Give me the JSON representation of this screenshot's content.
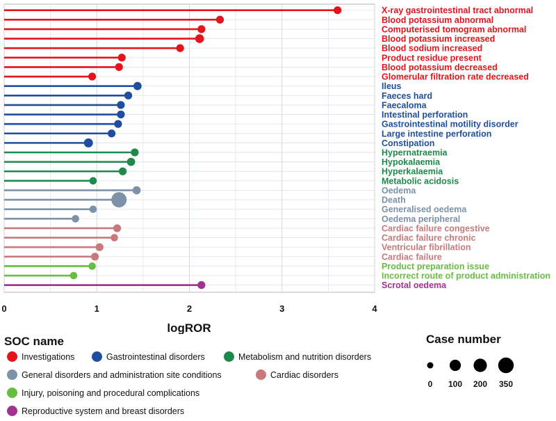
{
  "chart_data": {
    "type": "lollipop",
    "xlabel": "logROR",
    "xlim": [
      0,
      4
    ],
    "xticks": [
      "0",
      "1",
      "2",
      "3",
      "4"
    ],
    "grid": true,
    "size_legend_title": "Case number",
    "size_legend_values": [
      "0",
      "100",
      "200",
      "350"
    ],
    "soc_legend_title": "SOC name",
    "groups": [
      {
        "name": "Investigations",
        "color": "#e3141b"
      },
      {
        "name": "Gastrointestinal disorders",
        "color": "#1f4e9f"
      },
      {
        "name": "Metabolism and nutrition disorders",
        "color": "#1d8a4b"
      },
      {
        "name": "General disorders and administration site conditions",
        "color": "#7b92a8"
      },
      {
        "name": "Cardiac disorders",
        "color": "#c8797b"
      },
      {
        "name": "Injury, poisoning and procedural complications",
        "color": "#66bd3f"
      },
      {
        "name": "Reproductive system and breast disorders",
        "color": "#a0338f"
      }
    ],
    "points": [
      {
        "label": "X-ray gastrointestinal tract abnormal",
        "value": 3.6,
        "group": 0,
        "cases": 10
      },
      {
        "label": "Blood potassium abnormal",
        "value": 2.33,
        "group": 0,
        "cases": 10
      },
      {
        "label": "Computerised tomogram abnormal",
        "value": 2.13,
        "group": 0,
        "cases": 10
      },
      {
        "label": "Blood potassium increased",
        "value": 2.11,
        "group": 0,
        "cases": 25
      },
      {
        "label": "Blood sodium increased",
        "value": 1.9,
        "group": 0,
        "cases": 10
      },
      {
        "label": "Product residue present",
        "value": 1.27,
        "group": 0,
        "cases": 10
      },
      {
        "label": "Blood potassium decreased",
        "value": 1.24,
        "group": 0,
        "cases": 10
      },
      {
        "label": "Glomerular filtration rate decreased",
        "value": 0.95,
        "group": 0,
        "cases": 10
      },
      {
        "label": "Ileus",
        "value": 1.44,
        "group": 1,
        "cases": 15
      },
      {
        "label": "Faeces hard",
        "value": 1.34,
        "group": 1,
        "cases": 10
      },
      {
        "label": "Faecaloma",
        "value": 1.26,
        "group": 1,
        "cases": 10
      },
      {
        "label": "Intestinal perforation",
        "value": 1.26,
        "group": 1,
        "cases": 10
      },
      {
        "label": "Gastrointestinal motility disorder",
        "value": 1.23,
        "group": 1,
        "cases": 10
      },
      {
        "label": "Large intestine perforation",
        "value": 1.16,
        "group": 1,
        "cases": 10
      },
      {
        "label": "Constipation",
        "value": 0.91,
        "group": 1,
        "cases": 30
      },
      {
        "label": "Hypernatraemia",
        "value": 1.41,
        "group": 2,
        "cases": 10
      },
      {
        "label": "Hypokalaemia",
        "value": 1.37,
        "group": 2,
        "cases": 15
      },
      {
        "label": "Hyperkalaemia",
        "value": 1.28,
        "group": 2,
        "cases": 10
      },
      {
        "label": "Metabolic acidosis",
        "value": 0.96,
        "group": 2,
        "cases": 5
      },
      {
        "label": "Oedema",
        "value": 1.43,
        "group": 3,
        "cases": 15
      },
      {
        "label": "Death",
        "value": 1.24,
        "group": 3,
        "cases": 330
      },
      {
        "label": "Generalised oedema",
        "value": 0.96,
        "group": 3,
        "cases": 5
      },
      {
        "label": "Oedema peripheral",
        "value": 0.77,
        "group": 3,
        "cases": 5
      },
      {
        "label": "Cardiac failure congestive",
        "value": 1.22,
        "group": 4,
        "cases": 10
      },
      {
        "label": "Cardiac failure chronic",
        "value": 1.19,
        "group": 4,
        "cases": 5
      },
      {
        "label": "Ventricular fibrillation",
        "value": 1.03,
        "group": 4,
        "cases": 10
      },
      {
        "label": "Cardiac failure",
        "value": 0.98,
        "group": 4,
        "cases": 10
      },
      {
        "label": "Product preparation issue",
        "value": 0.95,
        "group": 5,
        "cases": 5
      },
      {
        "label": "Incorrect route of product administration",
        "value": 0.75,
        "group": 5,
        "cases": 5
      },
      {
        "label": "Scrotal oedema",
        "value": 2.13,
        "group": 6,
        "cases": 10
      }
    ]
  }
}
